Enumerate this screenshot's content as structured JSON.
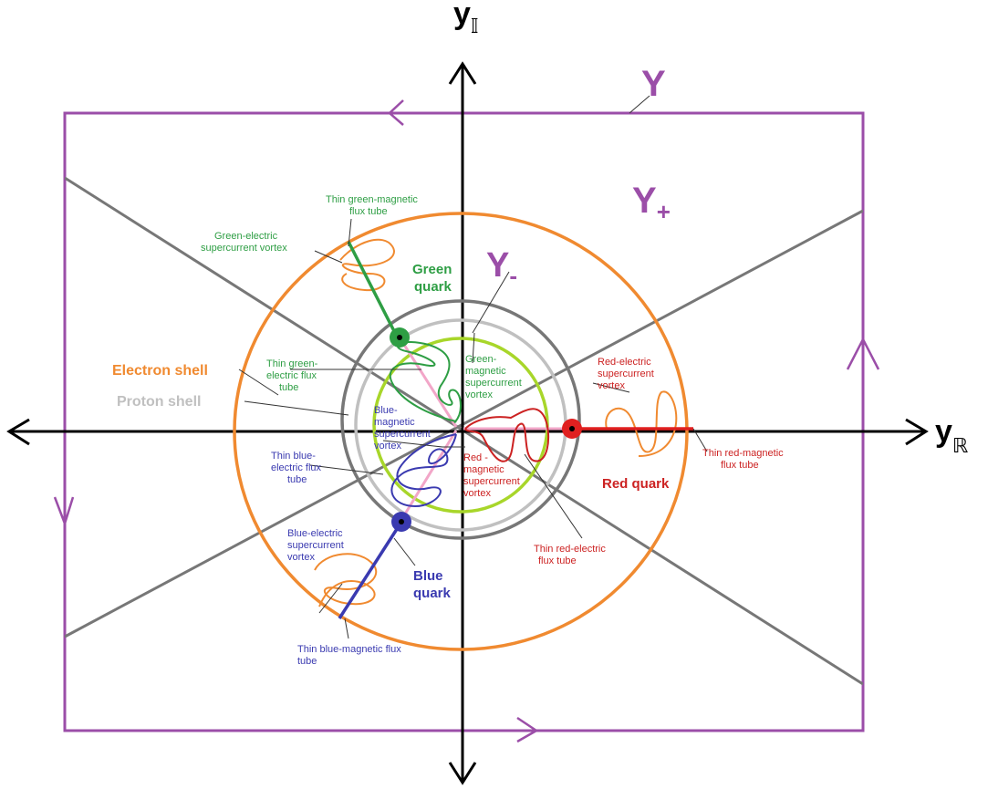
{
  "axes": {
    "y_vertical": {
      "base": "y",
      "sub": "𝕀"
    },
    "y_horizontal": {
      "base": "y",
      "sub": "ℝ"
    }
  },
  "regions": {
    "big_y": "Y",
    "y_plus": {
      "base": "Y",
      "sub": "+"
    },
    "y_minus": {
      "base": "Y",
      "sub": "-"
    }
  },
  "labels": {
    "thin_green_magnetic": [
      "Thin green-magnetic",
      "flux tube"
    ],
    "green_electric_vortex": [
      "Green-electric",
      "supercurrent vortex"
    ],
    "green_quark": [
      "Green",
      "quark"
    ],
    "electron_shell": "Electron shell",
    "proton_shell": "Proton shell",
    "thin_green_electric": [
      "Thin green-",
      "electric flux",
      "tube"
    ],
    "green_magnetic_vortex": [
      "Green-",
      "magnetic",
      "supercurrent",
      "vortex"
    ],
    "red_electric_vortex": [
      "Red-electric",
      "supercurrent",
      "vortex"
    ],
    "blue_magnetic_vortex": [
      "Blue-",
      "magnetic",
      "supercurrent",
      "vortex"
    ],
    "red_magnetic_vortex": [
      "Red -",
      "magnetic",
      "supercurrent",
      "vortex"
    ],
    "thin_red_magnetic": [
      "Thin red-magnetic",
      "flux tube"
    ],
    "red_quark": "Red quark",
    "thin_blue_electric": [
      "Thin blue-",
      "electric flux",
      "tube"
    ],
    "blue_electric_vortex": [
      "Blue-electric",
      "supercurrent",
      "vortex"
    ],
    "blue_quark": [
      "Blue",
      "quark"
    ],
    "thin_red_electric": [
      "Thin red-electric",
      "flux tube"
    ],
    "thin_blue_magnetic": [
      "Thin blue-magnetic flux",
      "tube"
    ]
  },
  "colors": {
    "purple": "#9b4ea8",
    "orange": "#f08a30",
    "dark_grey": "#777777",
    "light_grey": "#c0c0c0",
    "lime": "#a8d62a",
    "green": "#2e9e44",
    "red": "#e02020",
    "blue": "#3a3ab0",
    "pink": "#f2a6c8"
  }
}
